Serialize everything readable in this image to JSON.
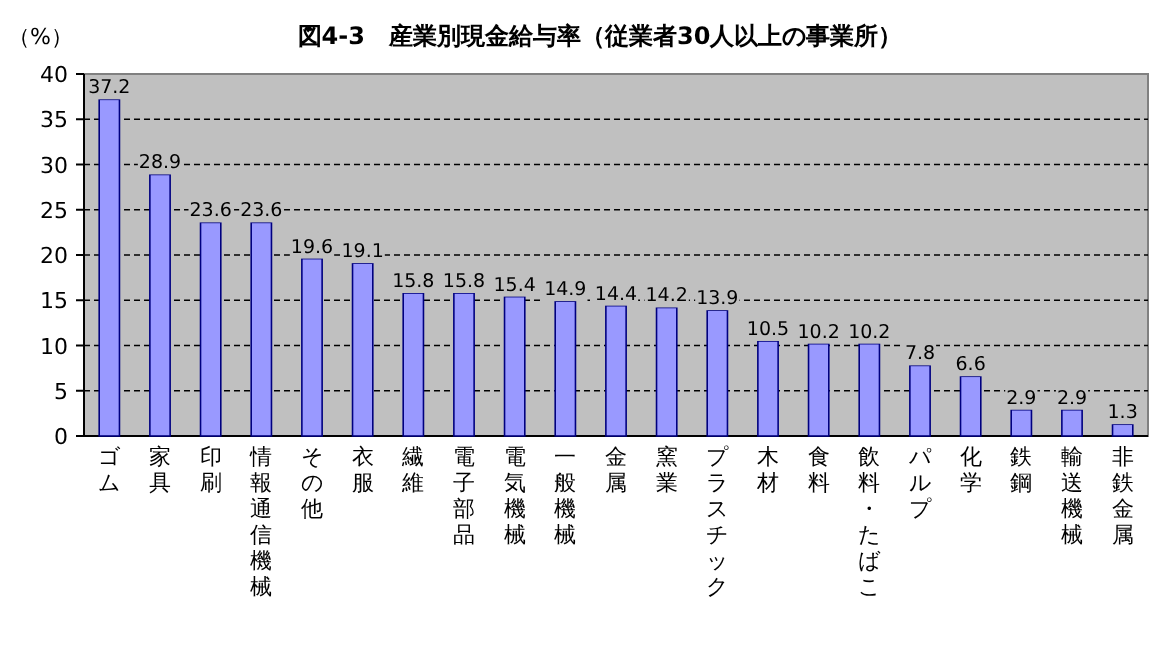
{
  "chart_data": {
    "type": "bar",
    "title": "図4-3　産業別現金給与率（従業者30人以上の事業所）",
    "ylabel": "（%）",
    "categories": [
      "ゴム",
      "家具",
      "印刷",
      "情報通信機械",
      "その他",
      "衣服",
      "繊維",
      "電子部品",
      "電気機械",
      "一般機械",
      "金属",
      "窯業",
      "プラスチック",
      "木材",
      "食料",
      "飲料・たばこ",
      "パルプ",
      "化学",
      "鉄鋼",
      "輸送機械",
      "非鉄金属"
    ],
    "values": [
      37.2,
      28.9,
      23.6,
      23.6,
      19.6,
      19.1,
      15.8,
      15.8,
      15.4,
      14.9,
      14.4,
      14.2,
      13.9,
      10.5,
      10.2,
      10.2,
      7.8,
      6.6,
      2.9,
      2.9,
      1.3
    ],
    "color": "#9999ff",
    "ylim": [
      0,
      40
    ],
    "yticks": [
      0,
      5,
      10,
      15,
      20,
      25,
      30,
      35,
      40
    ],
    "grid": "y",
    "data_labels": true
  }
}
